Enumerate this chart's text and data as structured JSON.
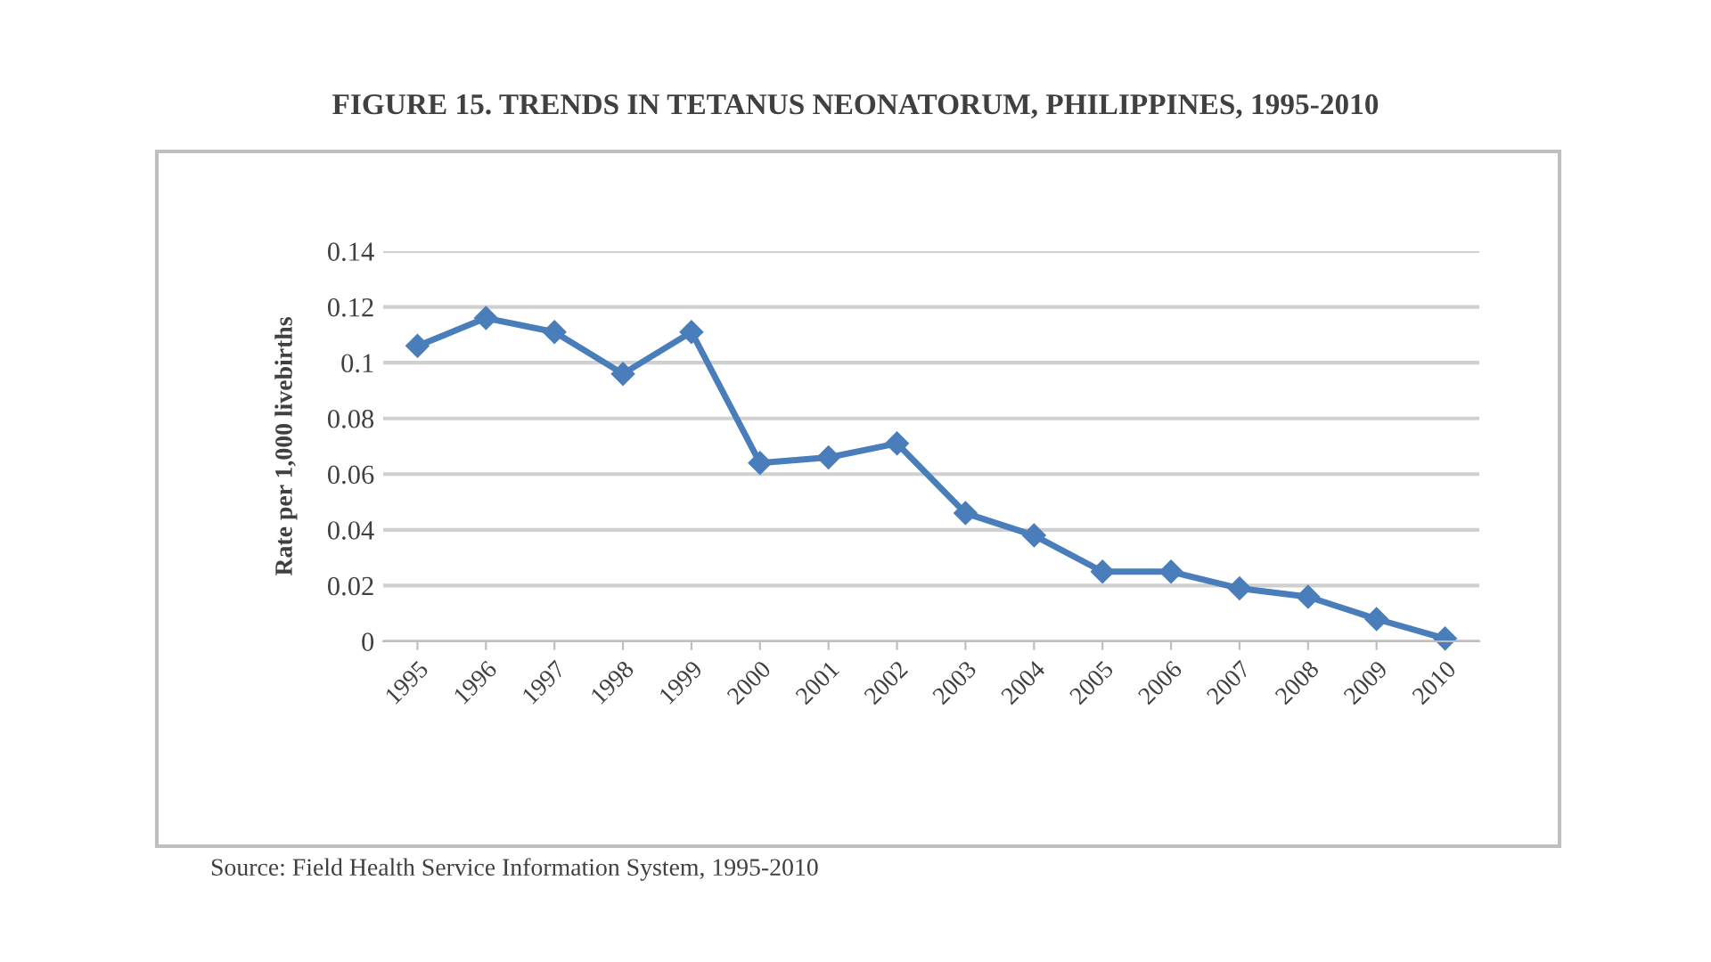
{
  "chart_data": {
    "type": "line",
    "title": "FIGURE 15. TRENDS IN TETANUS NEONATORUM, PHILIPPINES, 1995-2010",
    "ylabel": "Rate per 1,000 livebirths",
    "categories": [
      "1995",
      "1996",
      "1997",
      "1998",
      "1999",
      "2000",
      "2001",
      "2002",
      "2003",
      "2004",
      "2005",
      "2006",
      "2007",
      "2008",
      "2009",
      "2010"
    ],
    "series": [
      {
        "color": "#4a7ebb",
        "values": [
          0.106,
          0.116,
          0.111,
          0.096,
          0.111,
          0.064,
          0.066,
          0.071,
          0.046,
          0.038,
          0.025,
          0.025,
          0.019,
          0.016,
          0.008,
          0.001
        ]
      }
    ],
    "ylim": [
      0,
      0.14
    ],
    "yticks": [
      0,
      0.02,
      0.04,
      0.06,
      0.08,
      0.1,
      0.12,
      0.14
    ],
    "grid": "y",
    "marker": "diamond",
    "line_style": "solid",
    "legend": false,
    "annotations": [
      "Source: Field Health Service Information System, 1995-2010"
    ]
  }
}
